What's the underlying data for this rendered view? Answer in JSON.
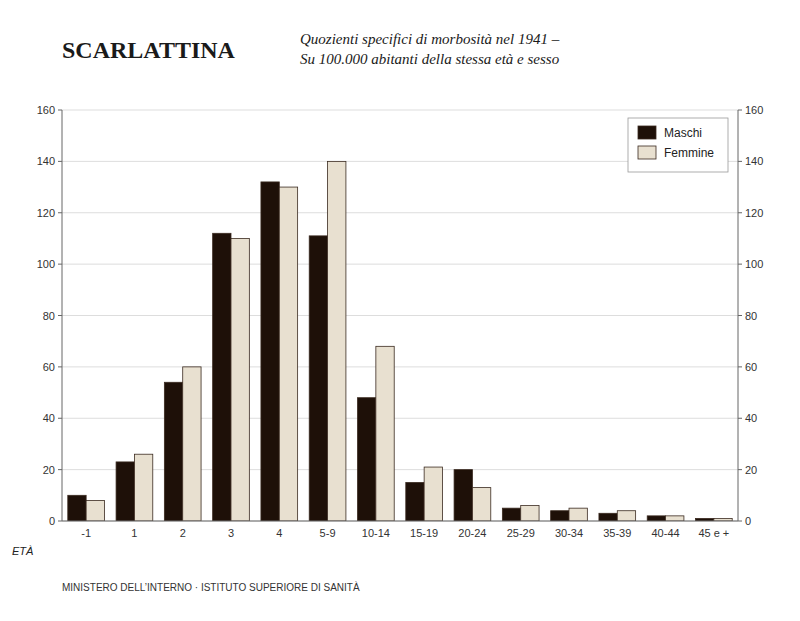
{
  "chart_data": {
    "type": "bar",
    "title": "SCARLATTINA",
    "subtitle": [
      "Quozienti specifici di morbosità nel 1941 –",
      "Su 100.000 abitanti della stessa età e sesso"
    ],
    "x_label": "ETÀ",
    "annotations": [
      "MINISTERO DELL’INTERNO  ·  ISTITUTO SUPERIORE DI SANITÀ"
    ],
    "categories": [
      "-1",
      "1",
      "2",
      "3",
      "4",
      "5-9",
      "10-14",
      "15-19",
      "20-24",
      "25-29",
      "30-34",
      "35-39",
      "40-44",
      "45 e +"
    ],
    "series": [
      {
        "name": "Maschi",
        "color": "#1e1008",
        "values": [
          10,
          23,
          54,
          112,
          132,
          111,
          48,
          15,
          20,
          5,
          4,
          3,
          2,
          1
        ]
      },
      {
        "name": "Femmine",
        "color": "#e8e0d0",
        "values": [
          8,
          26,
          60,
          110,
          130,
          140,
          68,
          21,
          13,
          6,
          5,
          4,
          2,
          1
        ]
      }
    ],
    "ylim": [
      0,
      160
    ],
    "yticks": [
      0,
      20,
      40,
      60,
      80,
      100,
      120,
      140,
      160
    ],
    "y2lim": [
      0,
      160
    ],
    "y2ticks": [
      0,
      20,
      40,
      60,
      80,
      100,
      120,
      140,
      160
    ],
    "grid": true,
    "legend": "upper right"
  }
}
